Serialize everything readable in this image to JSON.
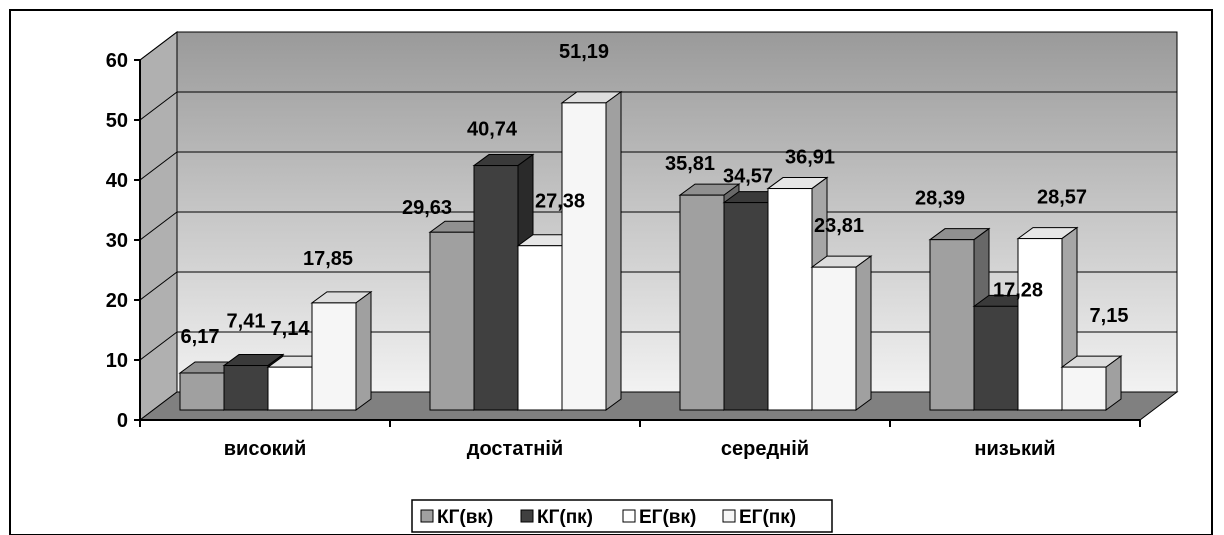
{
  "chart_data": {
    "type": "bar",
    "categories": [
      "високий",
      "достатній",
      "середній",
      "низький"
    ],
    "series": [
      {
        "name": "КГ(вк)",
        "values": [
          6.17,
          29.63,
          35.81,
          28.39
        ],
        "label_text": [
          "6,17",
          "29,63",
          "35,81",
          "28,39"
        ]
      },
      {
        "name": "КГ(пк)",
        "values": [
          7.41,
          40.74,
          34.57,
          17.28
        ],
        "label_text": [
          "7,41",
          "40,74",
          "34,57",
          "17,28"
        ]
      },
      {
        "name": "ЕГ(вк)",
        "values": [
          7.14,
          27.38,
          36.91,
          28.57
        ],
        "label_text": [
          "7,14",
          "27,38",
          "36,91",
          "28,57"
        ]
      },
      {
        "name": "ЕГ(пк)",
        "values": [
          17.85,
          51.19,
          23.81,
          7.15
        ],
        "label_text": [
          "17,85",
          "51,19",
          "23,81",
          "7,15"
        ]
      }
    ],
    "ylim": [
      0,
      60
    ],
    "yticks": [
      "0",
      "10",
      "20",
      "30",
      "40",
      "50",
      "60"
    ],
    "grid": true,
    "legend_position": "bottom",
    "colors": {
      "КГ(вк)": "#a0a0a0",
      "КГ(пк)": "#404040",
      "ЕГ(вк)": "#ffffff",
      "ЕГ(пк)": "#f6f6f6",
      "wall_top": "#9a9a9a",
      "wall_bottom": "#f2f2f2",
      "floor": "#808080",
      "side_wall": "#b0b0b0"
    }
  }
}
